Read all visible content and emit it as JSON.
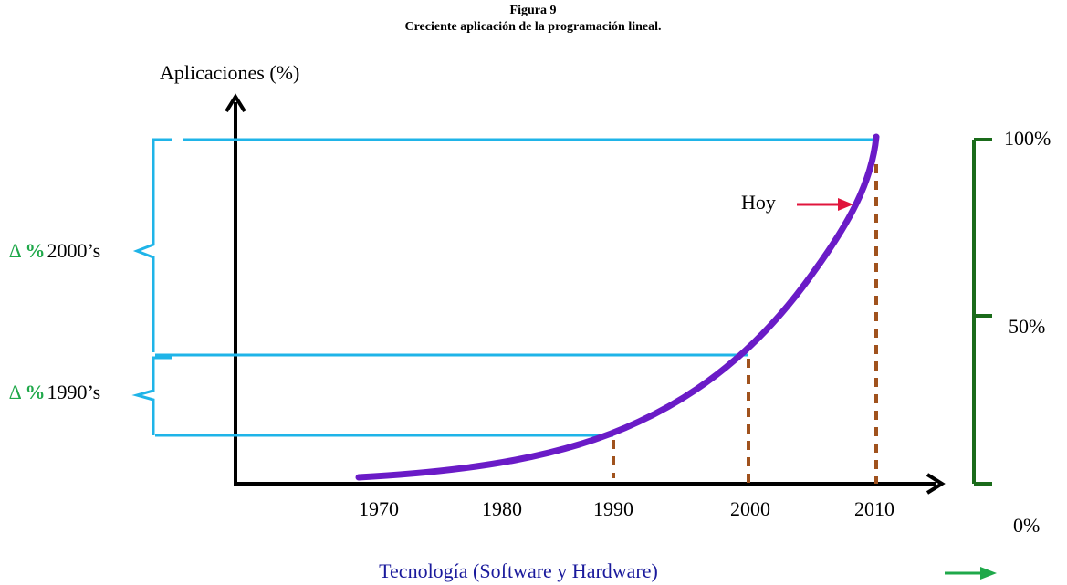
{
  "header": {
    "title": "Figura 9",
    "subtitle": "Creciente aplicación de la programación lineal."
  },
  "y_axis_label": "Aplicaciones (%)",
  "x_axis_label": "Tecnología (Software y Hardware)",
  "x_ticks": [
    "1970",
    "1980",
    "1990",
    "2000",
    "2010"
  ],
  "right_ticks": [
    "100%",
    "50%",
    "0%"
  ],
  "callout": "Hoy",
  "brackets": [
    {
      "symbol": "∆",
      "percent": "%",
      "decade": "2000’s"
    },
    {
      "symbol": "∆",
      "percent": "%",
      "decade": "1990’s"
    }
  ]
}
